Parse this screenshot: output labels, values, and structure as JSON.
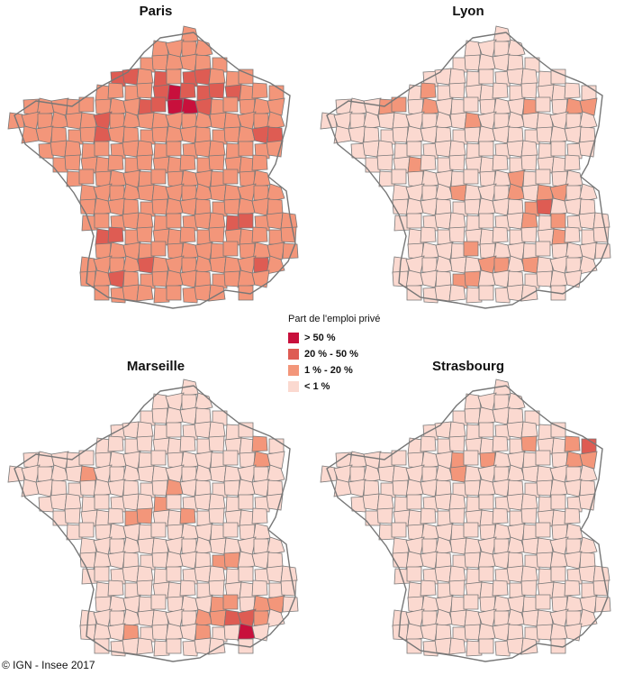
{
  "legend": {
    "title": "Part de l'emploi privé",
    "classes": [
      {
        "label": "> 50 %",
        "color": "#c8103c"
      },
      {
        "label": "20 % - 50 %",
        "color": "#de5c53"
      },
      {
        "label": "1 % - 20 %",
        "color": "#f3967a"
      },
      {
        "label": "< 1 %",
        "color": "#fbd9d0"
      }
    ]
  },
  "maps": [
    {
      "title": "Paris",
      "base_class": 2
    },
    {
      "title": "Lyon",
      "base_class": 3
    },
    {
      "title": "Marseille",
      "base_class": 3
    },
    {
      "title": "Strasbourg",
      "base_class": 3
    }
  ],
  "credit": "© IGN - Insee 2017",
  "border_color": "#777777"
}
